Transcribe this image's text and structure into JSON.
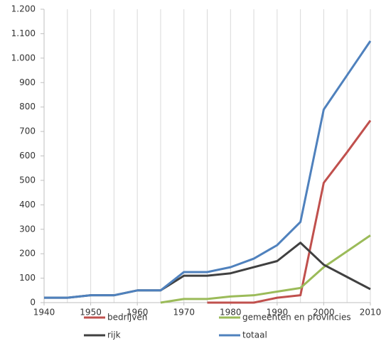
{
  "chart_data": {
    "type": "line",
    "x": [
      1940,
      1945,
      1950,
      1955,
      1960,
      1965,
      1970,
      1975,
      1980,
      1985,
      1990,
      1995,
      2000,
      2005,
      2010
    ],
    "series": [
      {
        "name": "bedrijven",
        "color": "#c0504d",
        "values": [
          null,
          null,
          null,
          null,
          null,
          null,
          null,
          0,
          0,
          0,
          20,
          30,
          490,
          615,
          745
        ]
      },
      {
        "name": "gemeenten en provincies",
        "color": "#9bbb59",
        "values": [
          null,
          null,
          null,
          null,
          null,
          0,
          15,
          15,
          25,
          30,
          45,
          60,
          145,
          210,
          275
        ]
      },
      {
        "name": "rijk",
        "color": "#404040",
        "values": [
          20,
          20,
          30,
          30,
          50,
          50,
          110,
          110,
          120,
          145,
          170,
          245,
          155,
          105,
          55
        ]
      },
      {
        "name": "totaal",
        "color": "#4f81bd",
        "values": [
          20,
          20,
          30,
          30,
          50,
          50,
          125,
          125,
          145,
          180,
          235,
          330,
          790,
          930,
          1070
        ]
      }
    ],
    "xlim": [
      1940,
      2010
    ],
    "xticks": [
      1940,
      1950,
      1960,
      1970,
      1980,
      1990,
      2000,
      2010
    ],
    "ylim": [
      0,
      1200
    ],
    "yticks": [
      0,
      100,
      200,
      300,
      400,
      500,
      600,
      700,
      800,
      900,
      {
        "value": 1000,
        "label": "1.000"
      },
      {
        "value": 1100,
        "label": "1.100"
      },
      {
        "value": 1200,
        "label": "1.200"
      }
    ],
    "grid": true
  }
}
